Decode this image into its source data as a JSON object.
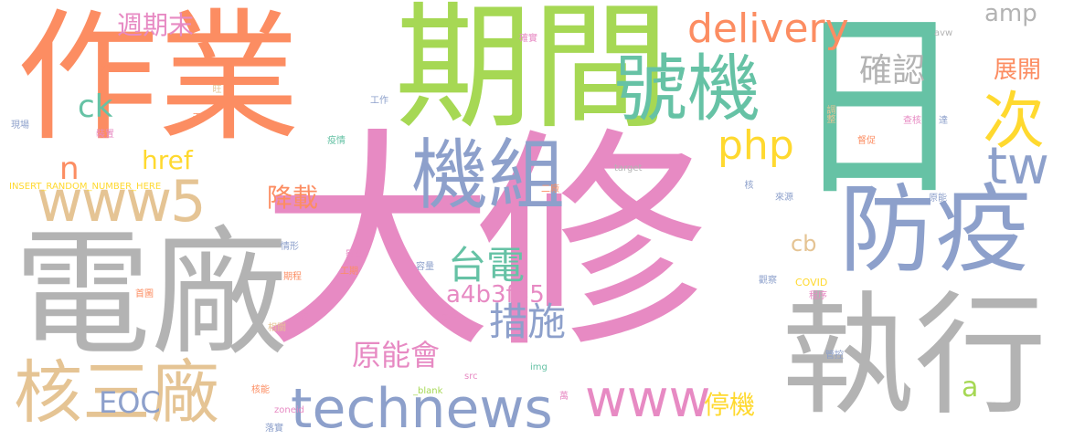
{
  "palette": {
    "orange": "#fc8d62",
    "green": "#a6d854",
    "teal": "#66c2a5",
    "pink": "#e78ac3",
    "blue": "#8da0cb",
    "gray": "#b3b3b3",
    "tan": "#e5c494",
    "yellow": "#ffd92f"
  },
  "words": [
    {
      "text": "大修"
    },
    {
      "text": "作業"
    },
    {
      "text": "期間"
    },
    {
      "text": "日"
    },
    {
      "text": "電廠"
    },
    {
      "text": "執行"
    },
    {
      "text": "防疫"
    },
    {
      "text": "www5"
    },
    {
      "text": "機組"
    },
    {
      "text": "號機"
    },
    {
      "text": "technews"
    },
    {
      "text": "核三廠"
    },
    {
      "text": "www"
    },
    {
      "text": "次"
    },
    {
      "text": "tw"
    },
    {
      "text": "delivery"
    },
    {
      "text": "台電"
    },
    {
      "text": "措施"
    },
    {
      "text": "php"
    },
    {
      "text": "確認"
    },
    {
      "text": "原能會"
    },
    {
      "text": "a4b3f35b"
    },
    {
      "text": "EOC"
    },
    {
      "text": "停機"
    },
    {
      "text": "降載"
    },
    {
      "text": "週期末"
    },
    {
      "text": "展開"
    },
    {
      "text": "href"
    },
    {
      "text": "ck"
    },
    {
      "text": "n"
    },
    {
      "text": "amp"
    },
    {
      "text": "cb"
    },
    {
      "text": "a"
    },
    {
      "text": "INSERT_RANDOM_NUMBER_HERE"
    },
    {
      "text": "target"
    },
    {
      "text": "COVID"
    },
    {
      "text": "zoneid"
    },
    {
      "text": "_blank"
    },
    {
      "text": "src"
    },
    {
      "text": "img"
    },
    {
      "text": "avw"
    },
    {
      "text": "確實"
    },
    {
      "text": "外"
    },
    {
      "text": "旺"
    },
    {
      "text": "天"
    },
    {
      "text": "工作"
    },
    {
      "text": "現場"
    },
    {
      "text": "裝置"
    },
    {
      "text": "疫情"
    },
    {
      "text": "調整"
    },
    {
      "text": "查核"
    },
    {
      "text": "達"
    },
    {
      "text": "督促"
    },
    {
      "text": "核"
    },
    {
      "text": "二廠"
    },
    {
      "text": "來源"
    },
    {
      "text": "原能"
    },
    {
      "text": "均"
    },
    {
      "text": "情形"
    },
    {
      "text": "影響"
    },
    {
      "text": "工期"
    },
    {
      "text": "容量"
    },
    {
      "text": "期程"
    },
    {
      "text": "首圖"
    },
    {
      "text": "預估"
    },
    {
      "text": "相關"
    },
    {
      "text": "運作"
    },
    {
      "text": "觀察"
    },
    {
      "text": "程序"
    },
    {
      "text": "管控"
    },
    {
      "text": "核能"
    },
    {
      "text": "落實"
    },
    {
      "text": "萬"
    }
  ]
}
